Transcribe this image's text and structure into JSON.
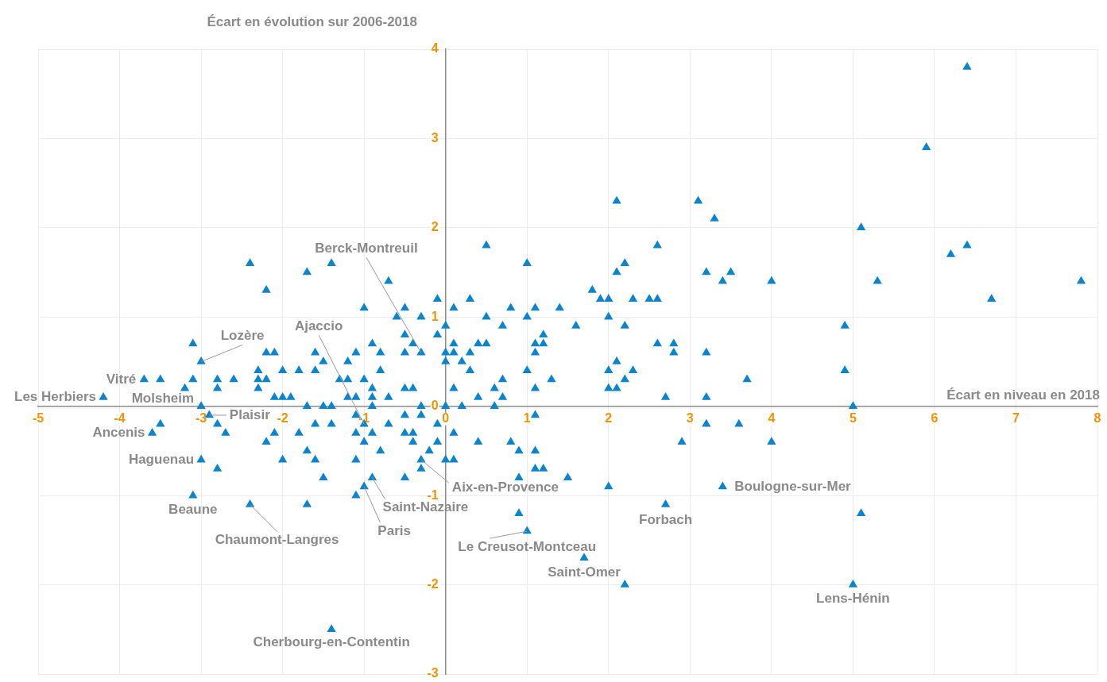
{
  "chart_data": {
    "type": "scatter",
    "xlabel": "Écart en niveau en 2018",
    "ylabel": "Écart en évolution sur 2006-2018",
    "xlim": [
      -5,
      8
    ],
    "ylim": [
      -3,
      4
    ],
    "xticks": [
      -5,
      -4,
      -3,
      -2,
      -1,
      0,
      1,
      2,
      3,
      4,
      5,
      6,
      7,
      8
    ],
    "yticks": [
      -3,
      -2,
      -1,
      0,
      1,
      2,
      3,
      4
    ],
    "grid": true,
    "legend": false,
    "marker": "triangle",
    "color": "#0a84cc",
    "x": [
      6.4,
      5.9,
      2.1,
      3.1,
      3.3,
      5.1,
      0.5,
      2.6,
      6.2,
      6.4,
      -2.4,
      -1.4,
      1.0,
      2.2,
      -1.7,
      2.1,
      3.2,
      3.5,
      3.4,
      4.0,
      5.3,
      7.8,
      -2.2,
      -0.7,
      1.8,
      6.7,
      -0.1,
      0.3,
      1.9,
      2.0,
      2.3,
      2.5,
      2.6,
      -1.0,
      -0.5,
      0.1,
      0.8,
      1.1,
      1.4,
      -0.6,
      -0.3,
      0.5,
      1.0,
      2.0,
      0.0,
      0.7,
      1.6,
      2.2,
      4.9,
      -0.5,
      -0.1,
      1.2,
      -3.1,
      -0.9,
      -0.4,
      0.1,
      0.4,
      0.5,
      1.1,
      1.2,
      2.6,
      2.8,
      -2.2,
      -2.1,
      -1.6,
      -1.1,
      -0.8,
      -0.5,
      -0.3,
      0.0,
      0.1,
      0.3,
      1.1,
      2.8,
      3.2,
      -3.0,
      -1.5,
      -1.2,
      0.0,
      0.2,
      2.1,
      -2.3,
      -2.0,
      -1.8,
      -1.6,
      -0.8,
      0.3,
      1.0,
      2.0,
      2.3,
      4.9,
      -3.7,
      -3.5,
      -3.1,
      -2.8,
      -2.6,
      -2.3,
      -2.2,
      -1.3,
      -1.2,
      -1.0,
      0.7,
      1.3,
      2.2,
      3.7,
      -3.2,
      -2.8,
      -2.3,
      -0.9,
      -0.5,
      -0.4,
      0.1,
      0.6,
      1.1,
      2.0,
      2.1,
      -4.2,
      -2.1,
      -2.0,
      -1.9,
      -1.2,
      -1.1,
      -0.9,
      -0.7,
      0.4,
      0.7,
      2.7,
      3.2,
      -3.0,
      -1.7,
      -1.5,
      -1.4,
      -0.9,
      -0.3,
      0.0,
      0.2,
      0.6,
      5.0,
      -2.9,
      -1.1,
      -0.5,
      -0.3,
      1.1,
      -3.5,
      -2.8,
      -1.6,
      -1.4,
      -1.0,
      -0.7,
      -0.1,
      3.2,
      3.6,
      -3.6,
      -2.7,
      -2.1,
      -1.8,
      -1.1,
      -0.9,
      -0.5,
      -0.4,
      0.1,
      -2.2,
      -1.0,
      -0.4,
      -0.1,
      0.4,
      0.8,
      2.9,
      4.0,
      -1.7,
      -0.8,
      -0.2,
      0.9,
      1.1,
      -3.0,
      -2.0,
      -1.6,
      -1.1,
      -0.3,
      0.0,
      0.1,
      -2.8,
      -0.3,
      1.1,
      1.2,
      -1.5,
      -0.9,
      -0.5,
      0.9,
      1.5,
      -1.0,
      2.0,
      3.4,
      -3.1,
      -1.1,
      -2.4,
      -1.7,
      2.7,
      0.9,
      5.1,
      1.0,
      1.7,
      2.2,
      5.0,
      -1.4
    ],
    "values": [
      3.8,
      2.9,
      2.3,
      2.3,
      2.1,
      2.0,
      1.8,
      1.8,
      1.7,
      1.8,
      1.6,
      1.6,
      1.6,
      1.6,
      1.5,
      1.5,
      1.5,
      1.5,
      1.4,
      1.4,
      1.4,
      1.4,
      1.3,
      1.4,
      1.3,
      1.2,
      1.2,
      1.2,
      1.2,
      1.2,
      1.2,
      1.2,
      1.2,
      1.1,
      1.1,
      1.1,
      1.1,
      1.1,
      1.1,
      1.0,
      1.0,
      1.0,
      1.0,
      1.0,
      0.9,
      0.9,
      0.9,
      0.9,
      0.9,
      0.8,
      0.8,
      0.8,
      0.7,
      0.7,
      0.7,
      0.7,
      0.7,
      0.7,
      0.7,
      0.7,
      0.7,
      0.7,
      0.6,
      0.6,
      0.6,
      0.6,
      0.6,
      0.6,
      0.6,
      0.6,
      0.6,
      0.6,
      0.6,
      0.6,
      0.6,
      0.5,
      0.5,
      0.5,
      0.5,
      0.5,
      0.5,
      0.4,
      0.4,
      0.4,
      0.4,
      0.4,
      0.4,
      0.4,
      0.4,
      0.4,
      0.4,
      0.3,
      0.3,
      0.3,
      0.3,
      0.3,
      0.3,
      0.3,
      0.3,
      0.3,
      0.3,
      0.3,
      0.3,
      0.3,
      0.3,
      0.2,
      0.2,
      0.2,
      0.2,
      0.2,
      0.2,
      0.2,
      0.2,
      0.2,
      0.2,
      0.2,
      0.1,
      0.1,
      0.1,
      0.1,
      0.1,
      0.1,
      0.1,
      0.1,
      0.1,
      0.1,
      0.1,
      0.1,
      0.0,
      0.0,
      0.0,
      0.0,
      0.0,
      0.0,
      0.0,
      0.0,
      0.0,
      0.0,
      -0.1,
      -0.1,
      -0.1,
      -0.1,
      -0.1,
      -0.2,
      -0.2,
      -0.2,
      -0.2,
      -0.2,
      -0.2,
      -0.2,
      -0.2,
      -0.2,
      -0.3,
      -0.3,
      -0.3,
      -0.3,
      -0.3,
      -0.3,
      -0.3,
      -0.3,
      -0.3,
      -0.4,
      -0.4,
      -0.4,
      -0.4,
      -0.4,
      -0.4,
      -0.4,
      -0.4,
      -0.5,
      -0.5,
      -0.5,
      -0.5,
      -0.5,
      -0.6,
      -0.6,
      -0.6,
      -0.6,
      -0.6,
      -0.6,
      -0.6,
      -0.7,
      -0.7,
      -0.7,
      -0.7,
      -0.8,
      -0.8,
      -0.8,
      -0.8,
      -0.8,
      -0.9,
      -0.9,
      -0.9,
      -1.0,
      -1.0,
      -1.1,
      -1.1,
      -1.1,
      -1.2,
      -1.2,
      -1.4,
      -1.7,
      -2.0,
      -2.0,
      -2.5
    ],
    "annotations": [
      {
        "text": "Berck-Montreuil",
        "x": -0.3,
        "y": 0.6
      },
      {
        "text": "Lozère",
        "x": -3.0,
        "y": 0.5
      },
      {
        "text": "Ajaccio",
        "x": -1.0,
        "y": -0.2
      },
      {
        "text": "Vitré",
        "x": -3.7,
        "y": 0.3
      },
      {
        "text": "Les Herbiers",
        "x": -4.2,
        "y": 0.1
      },
      {
        "text": "Molsheim",
        "x": -3.0,
        "y": 0.0
      },
      {
        "text": "Plaisir",
        "x": -2.9,
        "y": -0.1
      },
      {
        "text": "Ancenis",
        "x": -3.6,
        "y": -0.3
      },
      {
        "text": "Haguenau",
        "x": -3.0,
        "y": -0.6
      },
      {
        "text": "Beaune",
        "x": -3.1,
        "y": -1.0
      },
      {
        "text": "Chaumont-Langres",
        "x": -2.4,
        "y": -1.1
      },
      {
        "text": "Cherbourg-en-Contentin",
        "x": -1.4,
        "y": -2.5
      },
      {
        "text": "Saint-Nazaire",
        "x": -0.9,
        "y": -0.8
      },
      {
        "text": "Paris",
        "x": -1.0,
        "y": -0.9
      },
      {
        "text": "Aix-en-Provence",
        "x": -0.3,
        "y": -0.6
      },
      {
        "text": "Le Creusot-Montceau",
        "x": 1.0,
        "y": -1.4
      },
      {
        "text": "Saint-Omer",
        "x": 1.7,
        "y": -1.7
      },
      {
        "text": "Boulogne-sur-Mer",
        "x": 3.4,
        "y": -0.9
      },
      {
        "text": "Forbach",
        "x": 2.7,
        "y": -1.1
      },
      {
        "text": "Lens-Hénin",
        "x": 5.0,
        "y": -2.0
      }
    ]
  }
}
